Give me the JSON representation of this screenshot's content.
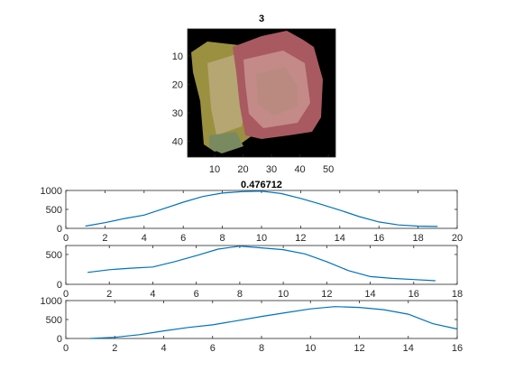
{
  "image_panel": {
    "title": "3",
    "xlim": [
      0.5,
      52.5
    ],
    "ylim": [
      0.5,
      45.5
    ],
    "xticks": [
      10,
      20,
      30,
      40,
      50
    ],
    "yticks": [
      10,
      20,
      30,
      40
    ]
  },
  "colors": {
    "series": "#0072BD",
    "image_background": "#000000",
    "image_tan": "#b8a878",
    "image_olive": "#9a9040",
    "image_rose": "#a85a60",
    "image_pink": "#c48a88"
  },
  "chart_data": [
    {
      "type": "line",
      "title": "0.476712",
      "xlim": [
        0,
        20
      ],
      "ylim": [
        0,
        1000
      ],
      "xticks": [
        0,
        2,
        4,
        6,
        8,
        10,
        12,
        14,
        16,
        18,
        20
      ],
      "yticks": [
        0,
        500,
        1000
      ],
      "grid": false,
      "series": [
        {
          "x": [
            1,
            2,
            3,
            4,
            5,
            6,
            7,
            8,
            9,
            10,
            11,
            12,
            13,
            14,
            15,
            16,
            17,
            18,
            19
          ],
          "y": [
            60,
            150,
            260,
            350,
            520,
            690,
            840,
            930,
            970,
            980,
            920,
            790,
            640,
            480,
            310,
            170,
            90,
            60,
            50
          ]
        }
      ]
    },
    {
      "type": "line",
      "title": "",
      "xlim": [
        0,
        18
      ],
      "ylim": [
        0,
        650
      ],
      "xticks": [
        0,
        2,
        4,
        6,
        8,
        10,
        12,
        14,
        16,
        18
      ],
      "yticks": [
        0,
        500
      ],
      "grid": false,
      "series": [
        {
          "x": [
            1,
            2,
            3,
            4,
            5,
            6,
            7,
            8,
            9,
            10,
            11,
            12,
            13,
            14,
            15,
            16,
            17
          ],
          "y": [
            200,
            245,
            270,
            290,
            380,
            480,
            590,
            640,
            610,
            580,
            510,
            380,
            230,
            130,
            100,
            80,
            60
          ]
        }
      ]
    },
    {
      "type": "line",
      "title": "",
      "xlim": [
        0,
        16
      ],
      "ylim": [
        0,
        1000
      ],
      "xticks": [
        0,
        2,
        4,
        6,
        8,
        10,
        12,
        14,
        16
      ],
      "yticks": [
        0,
        500,
        1000
      ],
      "grid": false,
      "series": [
        {
          "x": [
            1,
            2,
            3,
            4,
            5,
            6,
            7,
            8,
            9,
            10,
            11,
            12,
            13,
            14,
            15,
            16
          ],
          "y": [
            0,
            30,
            100,
            200,
            290,
            360,
            470,
            580,
            680,
            780,
            840,
            820,
            760,
            640,
            390,
            250
          ]
        }
      ]
    }
  ]
}
